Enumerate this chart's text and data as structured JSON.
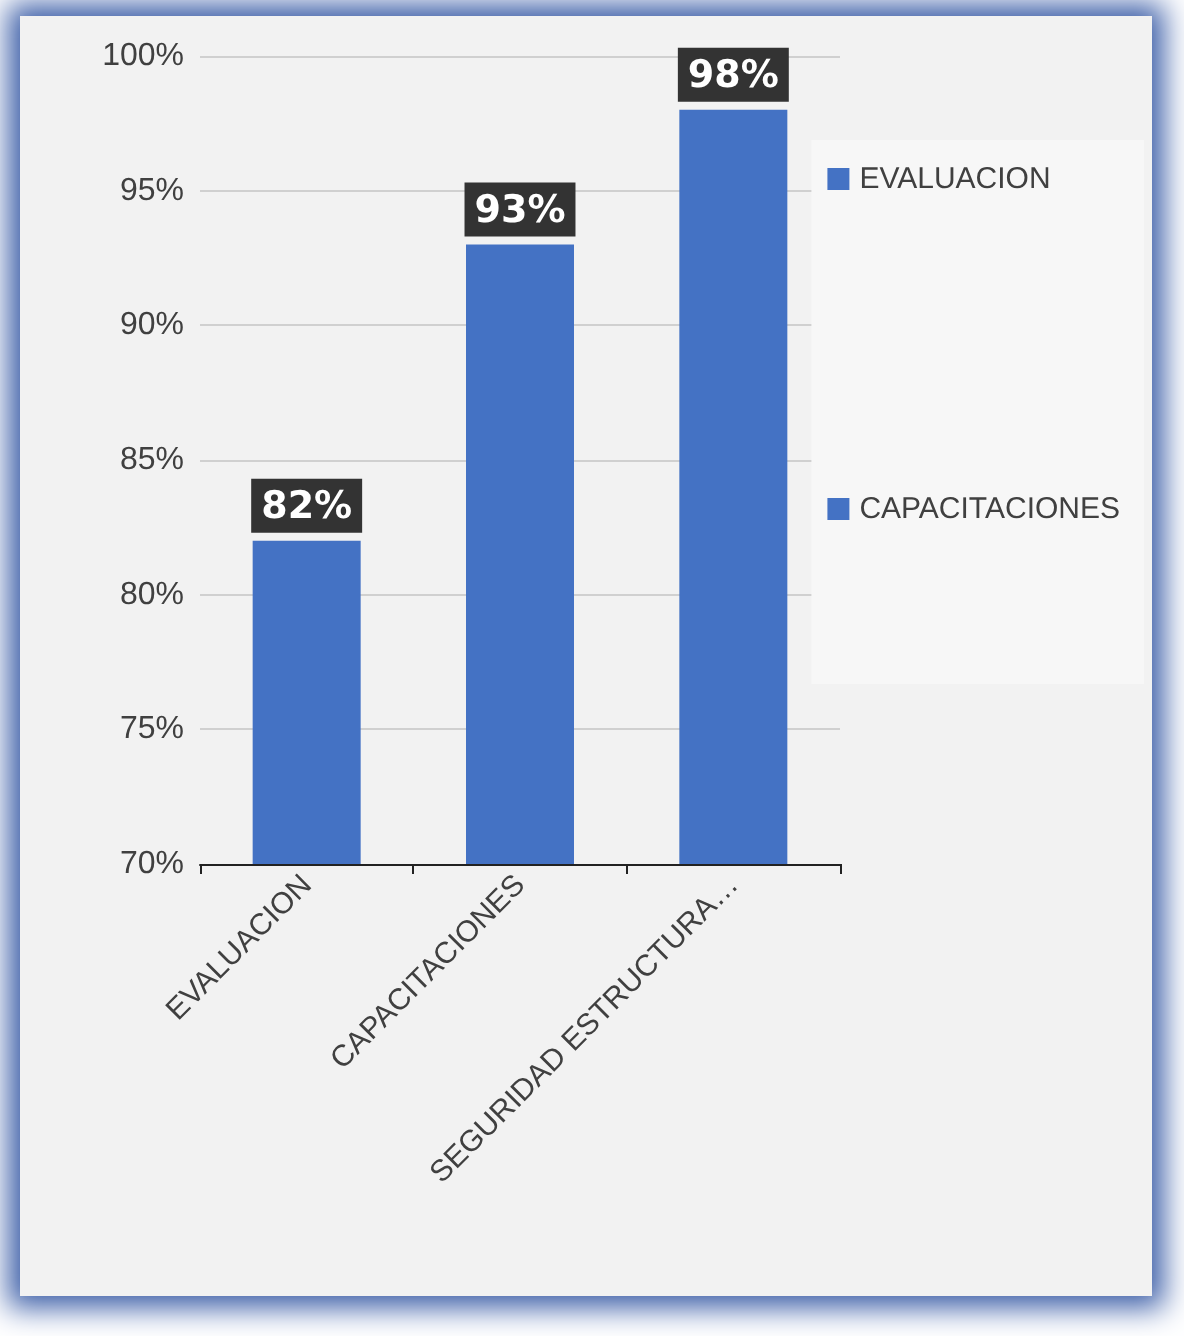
{
  "chart_data": {
    "type": "bar",
    "categories": [
      "EVALUACION",
      "CAPACITACIONES",
      "SEGURIDAD ESTRUCTURA…"
    ],
    "series": [
      {
        "name": "EVALUACION",
        "color": "#4472c4",
        "values": [
          82,
          null,
          null
        ],
        "value_labels": [
          "82%",
          null,
          null
        ]
      },
      {
        "name": "CAPACITACIONES",
        "color": "#4472c4",
        "values": [
          null,
          93,
          null
        ],
        "value_labels": [
          null,
          "93%",
          null
        ]
      },
      {
        "color": "#4472c4",
        "values": [
          null,
          null,
          98
        ],
        "value_labels": [
          null,
          null,
          "98%"
        ]
      }
    ],
    "ylim": [
      70,
      100
    ],
    "yticks": [
      {
        "value": 70,
        "label": "70%"
      },
      {
        "value": 75,
        "label": "75%"
      },
      {
        "value": 80,
        "label": "80%"
      },
      {
        "value": 85,
        "label": "85%"
      },
      {
        "value": 90,
        "label": "90%"
      },
      {
        "value": 95,
        "label": "95%"
      },
      {
        "value": 100,
        "label": "100%"
      }
    ],
    "grid": "y",
    "legend": "right"
  }
}
